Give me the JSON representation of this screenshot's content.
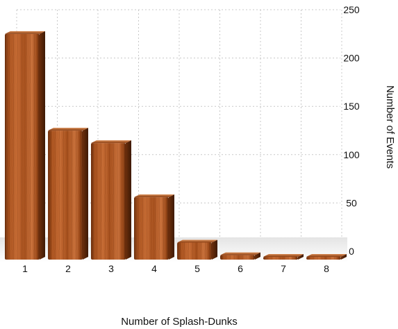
{
  "chart_data": {
    "type": "bar",
    "categories": [
      "1",
      "2",
      "3",
      "4",
      "5",
      "6",
      "7",
      "8"
    ],
    "values": [
      235,
      135,
      122,
      66,
      19,
      6,
      1,
      0
    ],
    "xlabel": "Number of Splash-Dunks",
    "ylabel": "Number of Events",
    "ylim": [
      0,
      250
    ],
    "yticks": [
      0,
      50,
      100,
      150,
      200,
      250
    ],
    "y_axis_position": "right",
    "grid": true,
    "grid_style": "dotted",
    "bar_style": "3d wood texture",
    "colors": {
      "wood_light": "#c8703a",
      "wood_mid": "#a9521e",
      "wood_dark": "#6b2e0c",
      "grid": "#c8c8c8"
    }
  }
}
